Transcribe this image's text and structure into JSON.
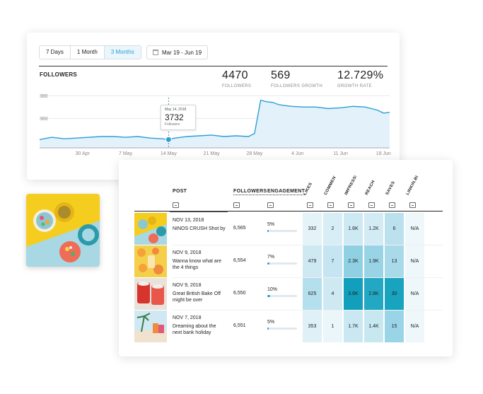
{
  "range_tabs": [
    {
      "label": "7 Days",
      "active": false
    },
    {
      "label": "1 Month",
      "active": false
    },
    {
      "label": "3 Months",
      "active": true
    }
  ],
  "date_range": "Mar 19 - Jun 19",
  "followers_title": "FOLLOWERS",
  "stats": [
    {
      "value": "4470",
      "label": "FOLLOWERS"
    },
    {
      "value": "569",
      "label": "FOLLOWERS GROWTH"
    },
    {
      "value": "12.729%",
      "label": "GROWTH RATE"
    }
  ],
  "tooltip": {
    "date": "May 14, 2018",
    "value": "3732",
    "label": "Followers"
  },
  "chart_data": {
    "type": "area",
    "y_ticks": [
      "380",
      "360",
      "350"
    ],
    "x_ticks": [
      "30 Apr",
      "7 May",
      "14 May",
      "21 May",
      "28 May",
      "4 Jun",
      "11 Jun",
      "18 Jun"
    ],
    "x": [
      "23 Apr",
      "25 Apr",
      "27 Apr",
      "29 Apr",
      "1 May",
      "3 May",
      "5 May",
      "7 May",
      "9 May",
      "11 May",
      "13 May",
      "14 May",
      "15 May",
      "17 May",
      "19 May",
      "21 May",
      "23 May",
      "25 May",
      "27 May",
      "28 May",
      "29 May",
      "30 May",
      "31 May",
      "1 Jun",
      "3 Jun",
      "5 Jun",
      "7 Jun",
      "9 Jun",
      "11 Jun",
      "13 Jun",
      "15 Jun",
      "17 Jun",
      "18 Jun",
      "19 Jun"
    ],
    "y": [
      351,
      352.5,
      351.5,
      352,
      352.5,
      353,
      353,
      352.5,
      353,
      352,
      351.5,
      351,
      352,
      353,
      353.5,
      354,
      353,
      353.5,
      353,
      355,
      377,
      376,
      375.5,
      374,
      373,
      372.5,
      372.5,
      371.5,
      372,
      373,
      372.5,
      370.5,
      368.5,
      369
    ],
    "highlight": {
      "x": "14 May",
      "y": 351
    },
    "accent": "#2b9fd6",
    "fill": "#e3f1fa"
  },
  "table": {
    "headers": {
      "post": "POST",
      "followers": "FOLLOWERS",
      "engagement": "ENGAGEMENT"
    },
    "metric_headers": [
      "LIKES",
      "COMMENTS",
      "IMPRESSIONS",
      "REACH",
      "SAVES",
      "LINKIN.BIO"
    ],
    "rows": [
      {
        "date": "NOV 13, 2018",
        "text": "NINOS CRUSH Shot by",
        "followers": "6,565",
        "engagement": "5%",
        "engagement_pct": 5,
        "metrics": [
          "332",
          "2",
          "1.6K",
          "1.2K",
          "6",
          "N/A"
        ]
      },
      {
        "date": "NOV 9, 2018",
        "text": "Wanna know what are the 4 things",
        "followers": "6,554",
        "engagement": "7%",
        "engagement_pct": 7,
        "metrics": [
          "479",
          "7",
          "2.3K",
          "1.9K",
          "13",
          "N/A"
        ]
      },
      {
        "date": "NOV 9, 2018",
        "text": "Great British Bake Off might be over",
        "followers": "6,550",
        "engagement": "10%",
        "engagement_pct": 10,
        "metrics": [
          "625",
          "4",
          "3.6K",
          "2.8K",
          "30",
          "N/A"
        ]
      },
      {
        "date": "NOV 7, 2018",
        "text": "Dreaming about the next bank holiday",
        "followers": "6,551",
        "engagement": "5%",
        "engagement_pct": 5,
        "metrics": [
          "353",
          "1",
          "1.7K",
          "1.4K",
          "15",
          "N/A"
        ]
      }
    ],
    "heat_colors": [
      [
        "#e4f3f8",
        "#d7eef6",
        "#cde9f3",
        "#d2ebf4",
        "#bce1ee",
        "#eef7fa"
      ],
      [
        "#cfe9f3",
        "#c4e5f1",
        "#8fd0e3",
        "#99d4e6",
        "#a9dae9",
        "#eef7fa"
      ],
      [
        "#b4dfed",
        "#cfe9f3",
        "#129fbb",
        "#22a8c3",
        "#18a3be",
        "#eef7fa"
      ],
      [
        "#dff1f7",
        "#eaf6fa",
        "#c9e8f2",
        "#c7e7f1",
        "#9ad5e7",
        "#eef7fa"
      ]
    ]
  }
}
